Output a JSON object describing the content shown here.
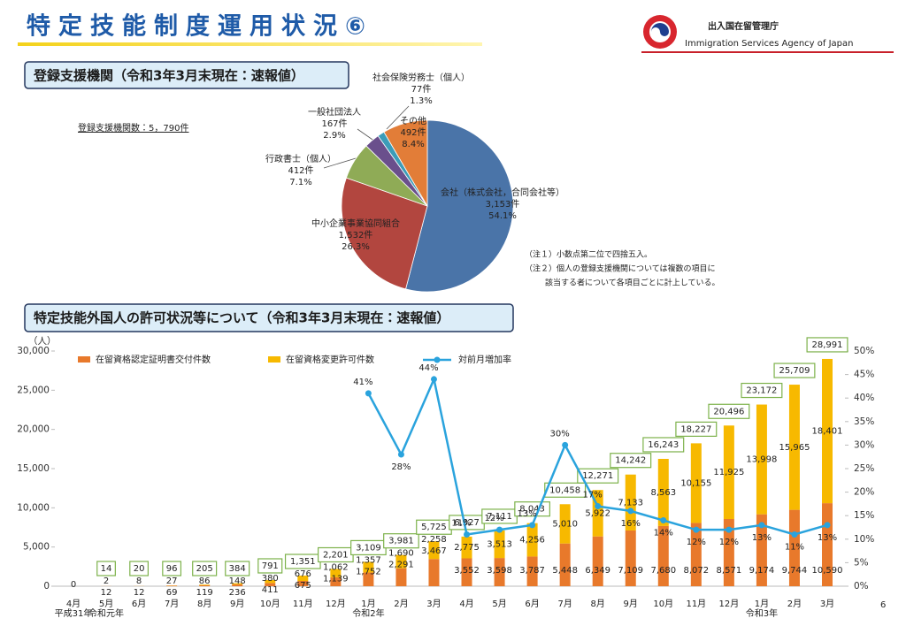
{
  "header": {
    "title": "特定技能制度運用状況⑥",
    "agency": "出入国在留管理庁",
    "agency_en": "Immigration Services Agency of Japan"
  },
  "page_number": "6",
  "chart_data": [
    {
      "type": "pie",
      "title": "登録支援機関（令和3年3月末現在：速報値）",
      "subtitle": "登録支援機関数：5，790件",
      "categories": [
        "会社（株式会社，合同会社等）",
        "中小企業事業協同組合",
        "行政書士（個人）",
        "一般社団法人",
        "社会保険労務士（個人）",
        "その他"
      ],
      "values": [
        3153,
        1532,
        412,
        167,
        77,
        492
      ],
      "value_labels": [
        "3,153件",
        "1,532件",
        "412件",
        "167件",
        "77件",
        "492件"
      ],
      "percent_labels": [
        "54.1%",
        "26.3%",
        "7.1%",
        "2.9%",
        "1.3%",
        "8.4%"
      ],
      "colors": [
        "#4a74a8",
        "#b2463f",
        "#8fab56",
        "#6a4f8c",
        "#3c9cb8",
        "#e27d38"
      ],
      "notes": [
        "（注１）小数点第二位で四捨五入。",
        "（注２）個人の登録支援機関については複数の項目に",
        "該当する者について各項目ごとに計上している。"
      ]
    },
    {
      "type": "combo",
      "title": "特定技能外国人の許可状況等について（令和3年3月末現在：速報値）",
      "y_label": "（人）",
      "categories": [
        "4月",
        "5月",
        "6月",
        "7月",
        "8月",
        "9月",
        "10月",
        "11月",
        "12月",
        "1月",
        "2月",
        "3月",
        "4月",
        "5月",
        "6月",
        "7月",
        "8月",
        "9月",
        "10月",
        "11月",
        "12月",
        "1月",
        "2月",
        "3月"
      ],
      "era_labels": [
        "平成31年",
        "令和元年",
        null,
        null,
        null,
        null,
        null,
        null,
        null,
        "令和2年",
        null,
        null,
        null,
        null,
        null,
        null,
        null,
        null,
        null,
        null,
        null,
        "令和3年",
        null,
        null
      ],
      "series": [
        {
          "name": "在留資格認定証明書交付件数",
          "color": "#e8792b",
          "values": [
            null,
            12,
            12,
            69,
            119,
            236,
            411,
            675,
            1139,
            1752,
            2291,
            3467,
            3552,
            3598,
            3787,
            5448,
            6349,
            7109,
            7680,
            8072,
            8571,
            9174,
            9744,
            10590
          ],
          "value_labels": [
            null,
            "12",
            "12",
            "69",
            "119",
            "236",
            "411",
            "675",
            "1,139",
            "1,752",
            "2,291",
            "3,467",
            "3,552",
            "3,598",
            "3,787",
            "5,448",
            "6,349",
            "7,109",
            "7,680",
            "8,072",
            "8,571",
            "9,174",
            "9,744",
            "10,590"
          ]
        },
        {
          "name": "在留資格変更許可件数",
          "color": "#f7b900",
          "values": [
            null,
            2,
            8,
            27,
            86,
            148,
            380,
            676,
            1062,
            1357,
            1690,
            2258,
            2775,
            3513,
            4256,
            5010,
            5922,
            7133,
            8563,
            10155,
            11925,
            13998,
            15965,
            18401
          ],
          "value_labels": [
            null,
            "2",
            "8",
            "27",
            "86",
            "148",
            "380",
            "676",
            "1,062",
            "1,357",
            "1,690",
            "2,258",
            "2,775",
            "3,513",
            "4,256",
            "5,010",
            "5,922",
            "7,133",
            "8,563",
            "10,155",
            "11,925",
            "13,998",
            "15,965",
            "18,401"
          ]
        },
        {
          "name": "対前月増加率",
          "color": "#2aa3dd",
          "axis": "y2",
          "values": [
            null,
            null,
            null,
            null,
            null,
            null,
            null,
            null,
            null,
            41,
            28,
            44,
            11,
            12,
            13,
            30,
            17,
            16,
            14,
            12,
            12,
            13,
            11,
            13
          ],
          "value_labels": [
            null,
            null,
            null,
            null,
            null,
            null,
            null,
            null,
            null,
            "41%",
            "28%",
            "44%",
            "11%",
            "12%",
            "13%",
            "30%",
            "17%",
            "16%",
            "14%",
            "12%",
            "12%",
            "13%",
            "11%",
            "13%"
          ]
        }
      ],
      "totals": {
        "values": [
          0,
          14,
          20,
          96,
          205,
          384,
          791,
          1351,
          2201,
          3109,
          3981,
          5725,
          6327,
          7111,
          8043,
          10458,
          12271,
          14242,
          16243,
          18227,
          20496,
          23172,
          25709,
          28991
        ],
        "value_labels": [
          "0",
          "14",
          "20",
          "96",
          "205",
          "384",
          "791",
          "1,351",
          "2,201",
          "3,109",
          "3,981",
          "5,725",
          "6,327",
          "7,111",
          "8,043",
          "10,458",
          "12,271",
          "14,242",
          "16,243",
          "18,227",
          "20,496",
          "23,172",
          "25,709",
          "28,991"
        ]
      },
      "ylim": [
        0,
        30000
      ],
      "yticks": [
        0,
        {
          "value": 5000,
          "label": "5,000"
        },
        {
          "value": 10000,
          "label": "10,000"
        },
        {
          "value": 15000,
          "label": "15,000"
        },
        {
          "value": 20000,
          "label": "20,000"
        },
        {
          "value": 25000,
          "label": "25,000"
        },
        {
          "value": 30000,
          "label": "30,000"
        }
      ],
      "y2lim": [
        0,
        50
      ],
      "y2ticks": [
        {
          "value": 0,
          "label": "0%"
        },
        {
          "value": 5,
          "label": "5%"
        },
        {
          "value": 10,
          "label": "10%"
        },
        {
          "value": 15,
          "label": "15%"
        },
        {
          "value": 20,
          "label": "20%"
        },
        {
          "value": 25,
          "label": "25%"
        },
        {
          "value": 30,
          "label": "30%"
        },
        {
          "value": 35,
          "label": "35%"
        },
        {
          "value": 40,
          "label": "40%"
        },
        {
          "value": 45,
          "label": "45%"
        },
        {
          "value": 50,
          "label": "50%"
        }
      ]
    }
  ]
}
